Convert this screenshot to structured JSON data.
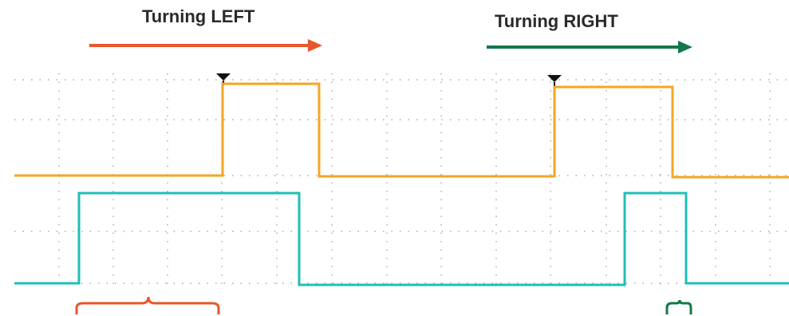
{
  "labels": {
    "turning_left": "Turning LEFT",
    "turning_right": "Turning RIGHT"
  },
  "colors": {
    "left_arrow": "#e8572a",
    "right_arrow": "#11784a",
    "channel_1": "#f5a623",
    "channel_2": "#1fbfb8",
    "grid": "#9a9a9a",
    "trigger_marker": "#111111"
  }
}
